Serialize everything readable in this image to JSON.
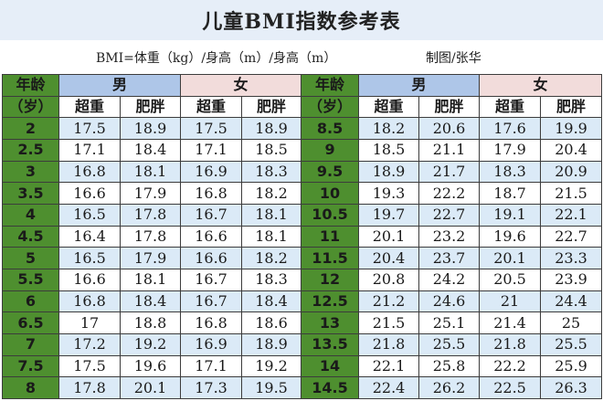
{
  "title": "儿童BMI指数参考表",
  "formula": "BMI=体重（kg）/身高（m）/身高（m）",
  "credit": "制图/张华",
  "headers": {
    "age_top": "年龄",
    "age_bottom": "（岁）",
    "male": "男",
    "female": "女",
    "overweight": "超重",
    "obese": "肥胖"
  },
  "left_rows": [
    {
      "age": "2",
      "m_over": "17.5",
      "m_obese": "18.9",
      "f_over": "17.5",
      "f_obese": "18.9"
    },
    {
      "age": "2.5",
      "m_over": "17.1",
      "m_obese": "18.4",
      "f_over": "17.1",
      "f_obese": "18.5"
    },
    {
      "age": "3",
      "m_over": "16.8",
      "m_obese": "18.1",
      "f_over": "16.9",
      "f_obese": "18.3"
    },
    {
      "age": "3.5",
      "m_over": "16.6",
      "m_obese": "17.9",
      "f_over": "16.8",
      "f_obese": "18.2"
    },
    {
      "age": "4",
      "m_over": "16.5",
      "m_obese": "17.8",
      "f_over": "16.7",
      "f_obese": "18.1"
    },
    {
      "age": "4.5",
      "m_over": "16.4",
      "m_obese": "17.8",
      "f_over": "16.6",
      "f_obese": "18.1"
    },
    {
      "age": "5",
      "m_over": "16.5",
      "m_obese": "17.9",
      "f_over": "16.6",
      "f_obese": "18.2"
    },
    {
      "age": "5.5",
      "m_over": "16.6",
      "m_obese": "18.1",
      "f_over": "16.7",
      "f_obese": "18.3"
    },
    {
      "age": "6",
      "m_over": "16.8",
      "m_obese": "18.4",
      "f_over": "16.7",
      "f_obese": "18.4"
    },
    {
      "age": "6.5",
      "m_over": "17",
      "m_obese": "18.8",
      "f_over": "16.8",
      "f_obese": "18.6"
    },
    {
      "age": "7",
      "m_over": "17.2",
      "m_obese": "19.2",
      "f_over": "16.9",
      "f_obese": "18.9"
    },
    {
      "age": "7.5",
      "m_over": "17.5",
      "m_obese": "19.6",
      "f_over": "17.1",
      "f_obese": "19.2"
    },
    {
      "age": "8",
      "m_over": "17.8",
      "m_obese": "20.1",
      "f_over": "17.3",
      "f_obese": "19.5"
    }
  ],
  "right_rows": [
    {
      "age": "8.5",
      "m_over": "18.2",
      "m_obese": "20.6",
      "f_over": "17.6",
      "f_obese": "19.9"
    },
    {
      "age": "9",
      "m_over": "18.5",
      "m_obese": "21.1",
      "f_over": "17.9",
      "f_obese": "20.4"
    },
    {
      "age": "9.5",
      "m_over": "18.9",
      "m_obese": "21.7",
      "f_over": "18.3",
      "f_obese": "20.9"
    },
    {
      "age": "10",
      "m_over": "19.3",
      "m_obese": "22.2",
      "f_over": "18.7",
      "f_obese": "21.5"
    },
    {
      "age": "10.5",
      "m_over": "19.7",
      "m_obese": "22.7",
      "f_over": "19.1",
      "f_obese": "22.1"
    },
    {
      "age": "11",
      "m_over": "20.1",
      "m_obese": "23.2",
      "f_over": "19.6",
      "f_obese": "22.7"
    },
    {
      "age": "11.5",
      "m_over": "20.4",
      "m_obese": "23.7",
      "f_over": "20.1",
      "f_obese": "23.3"
    },
    {
      "age": "12",
      "m_over": "20.8",
      "m_obese": "24.2",
      "f_over": "20.5",
      "f_obese": "23.9"
    },
    {
      "age": "12.5",
      "m_over": "21.2",
      "m_obese": "24.6",
      "f_over": "21",
      "f_obese": "24.4"
    },
    {
      "age": "13",
      "m_over": "21.5",
      "m_obese": "25.1",
      "f_over": "21.4",
      "f_obese": "25"
    },
    {
      "age": "13.5",
      "m_over": "21.8",
      "m_obese": "25.5",
      "f_over": "21.8",
      "f_obese": "25.5"
    },
    {
      "age": "14",
      "m_over": "22.1",
      "m_obese": "25.8",
      "f_over": "22.2",
      "f_obese": "25.9"
    },
    {
      "age": "14.5",
      "m_over": "22.4",
      "m_obese": "26.2",
      "f_over": "22.5",
      "f_obese": "26.3"
    }
  ],
  "colors": {
    "age_column": "#4e8f2f",
    "male_header": "#aec6e8",
    "female_header": "#f2dcdb",
    "stripe": "#dbeaf7",
    "title_bar": "#e6eef8"
  }
}
